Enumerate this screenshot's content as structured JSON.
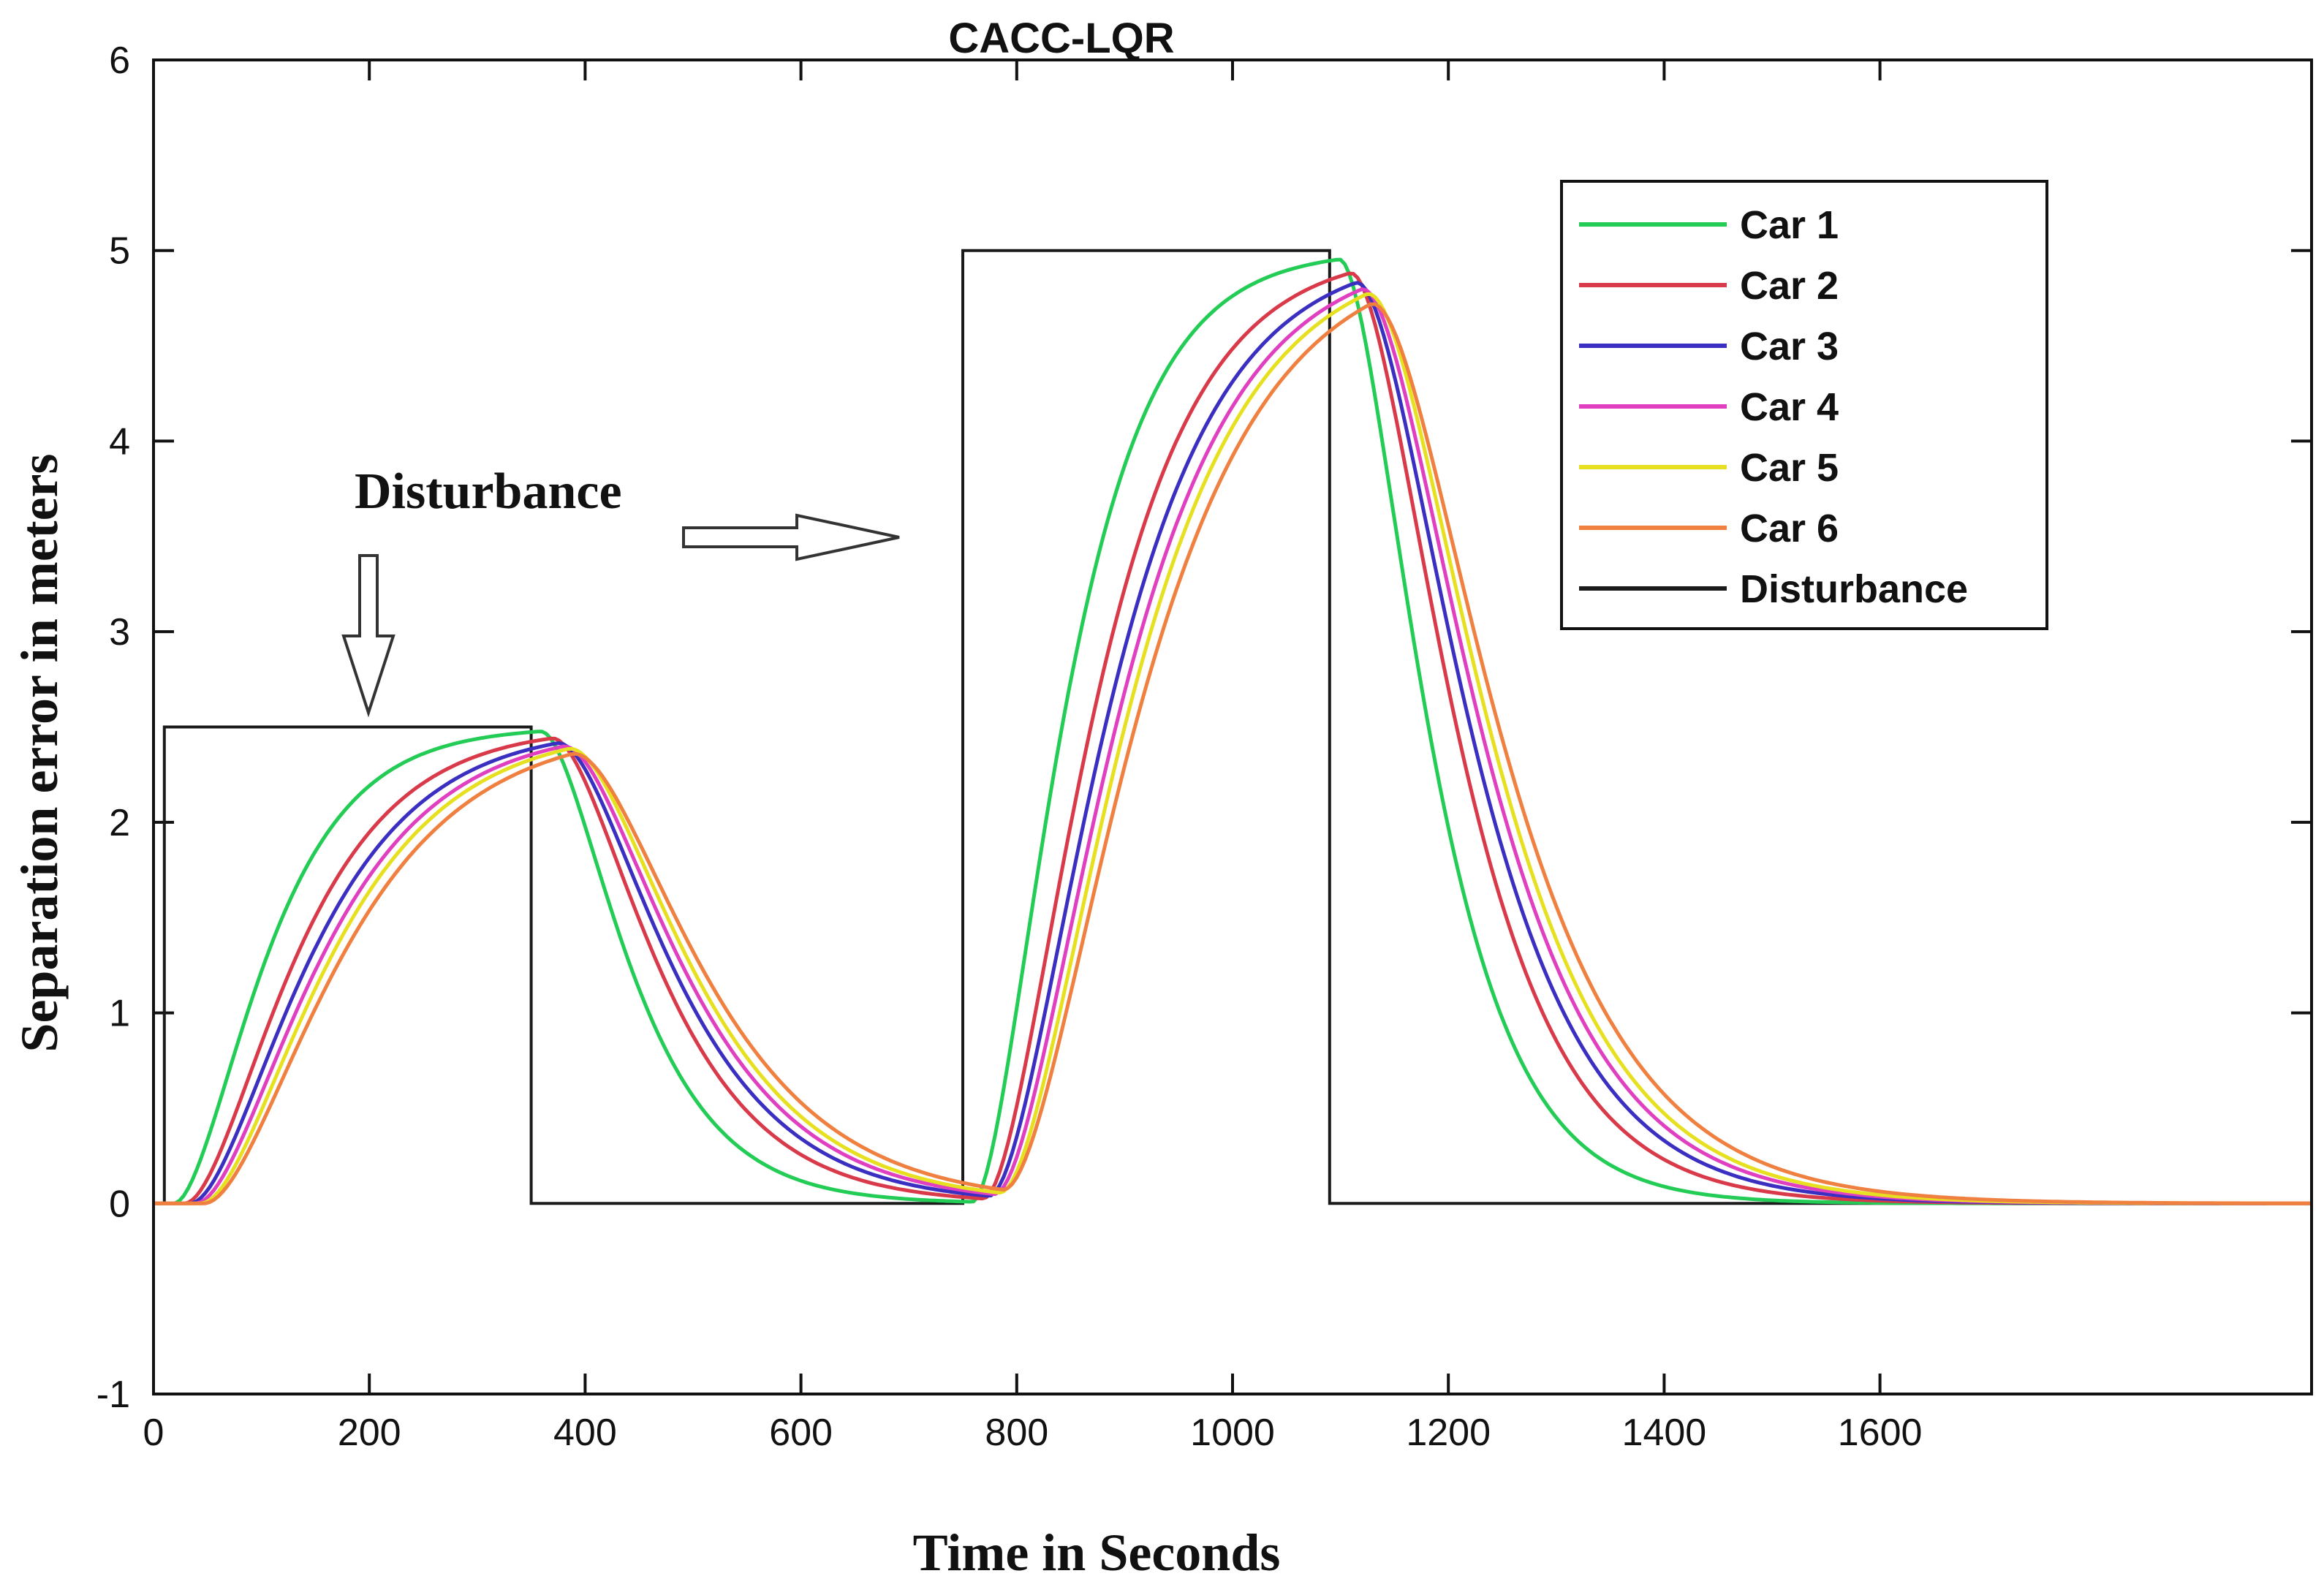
{
  "chart_data": {
    "type": "line",
    "title": "CACC-LQR",
    "xlabel": "Time in Seconds",
    "ylabel": "Separation error in meters",
    "xlim": [
      0,
      2000
    ],
    "ylim": [
      -1,
      6
    ],
    "xticks": [
      0,
      200,
      400,
      600,
      800,
      1000,
      1200,
      1400,
      1600
    ],
    "xtick_labels": [
      "0",
      "200",
      "400",
      "600",
      "800",
      "1000",
      "1200",
      "1400",
      "1600"
    ],
    "yticks": [
      -1,
      0,
      1,
      2,
      3,
      4,
      5,
      6
    ],
    "ytick_labels": [
      "-1",
      "0",
      "1",
      "2",
      "3",
      "4",
      "5",
      "6"
    ],
    "legend_position": "top-right",
    "disturbance": {
      "name": "Disturbance",
      "color": "#1a1a1a",
      "x": [
        0,
        10,
        10,
        350,
        350,
        750,
        750,
        1090,
        1090,
        2000
      ],
      "y": [
        0,
        0,
        2.5,
        2.5,
        0,
        0,
        5,
        5,
        0,
        0
      ]
    },
    "series": [
      {
        "name": "Car 1",
        "color": "#22cc55",
        "delay": 10,
        "tau": 50
      },
      {
        "name": "Car 2",
        "color": "#d93a4a",
        "delay": 20,
        "tau": 60
      },
      {
        "name": "Car 3",
        "color": "#3a2fc0",
        "delay": 25,
        "tau": 65
      },
      {
        "name": "Car 4",
        "color": "#e040c0",
        "delay": 30,
        "tau": 68
      },
      {
        "name": "Car 5",
        "color": "#e6e020",
        "delay": 35,
        "tau": 70
      },
      {
        "name": "Car 6",
        "color": "#f08040",
        "delay": 38,
        "tau": 74
      }
    ],
    "annotations": [
      {
        "text": "Disturbance",
        "arrow": "down"
      },
      {
        "text": "",
        "arrow": "right"
      }
    ]
  }
}
